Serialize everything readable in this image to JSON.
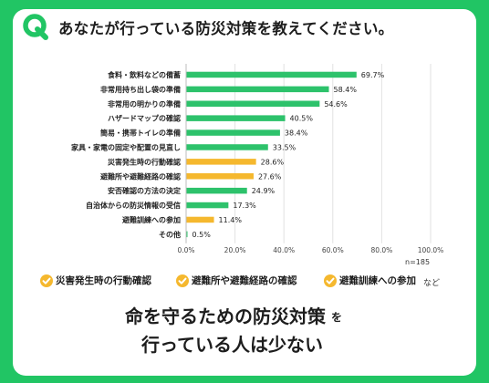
{
  "question": "あなたが行っている防災対策を教えてください。",
  "q_icon": "Q",
  "chart_data": {
    "type": "bar",
    "orientation": "horizontal",
    "categories": [
      "食料・飲料などの備蓄",
      "非常用持ち出し袋の準備",
      "非常用の明かりの準備",
      "ハザードマップの確認",
      "簡易・携帯トイレの準備",
      "家具・家電の固定や配置の見直し",
      "災害発生時の行動確認",
      "避難所や避難経路の確認",
      "安否確認の方法の決定",
      "自治体からの防災情報の受信",
      "避難訓練への参加",
      "その他"
    ],
    "values": [
      69.7,
      58.4,
      54.6,
      40.5,
      38.4,
      33.5,
      28.6,
      27.6,
      24.9,
      17.3,
      11.4,
      0.5
    ],
    "value_labels": [
      "69.7%",
      "58.4%",
      "54.6%",
      "40.5%",
      "38.4%",
      "33.5%",
      "28.6%",
      "27.6%",
      "24.9%",
      "17.3%",
      "11.4%",
      "0.5%"
    ],
    "highlighted": [
      false,
      false,
      false,
      false,
      false,
      false,
      true,
      true,
      false,
      false,
      true,
      false
    ],
    "xlim": [
      0,
      100
    ],
    "xticks": [
      "0.0%",
      "20.0%",
      "40.0%",
      "60.0%",
      "80.0%",
      "100.0%"
    ],
    "grid": true,
    "colors": {
      "default": "#2dc26b",
      "highlight": "#f5b82e"
    }
  },
  "n_label": "n=185",
  "legend": {
    "items": [
      "災害発生時の行動確認",
      "避難所や避難経路の確認",
      "避難訓練への参加"
    ],
    "suffix": "など"
  },
  "headline": {
    "main": "命を守るための防災対策",
    "particle": "を",
    "line2": "行っている人は少ない"
  },
  "colors": {
    "background": "#21c564",
    "card": "#ffffff",
    "accent_green": "#2dc26b",
    "accent_yellow": "#f5b82e"
  }
}
